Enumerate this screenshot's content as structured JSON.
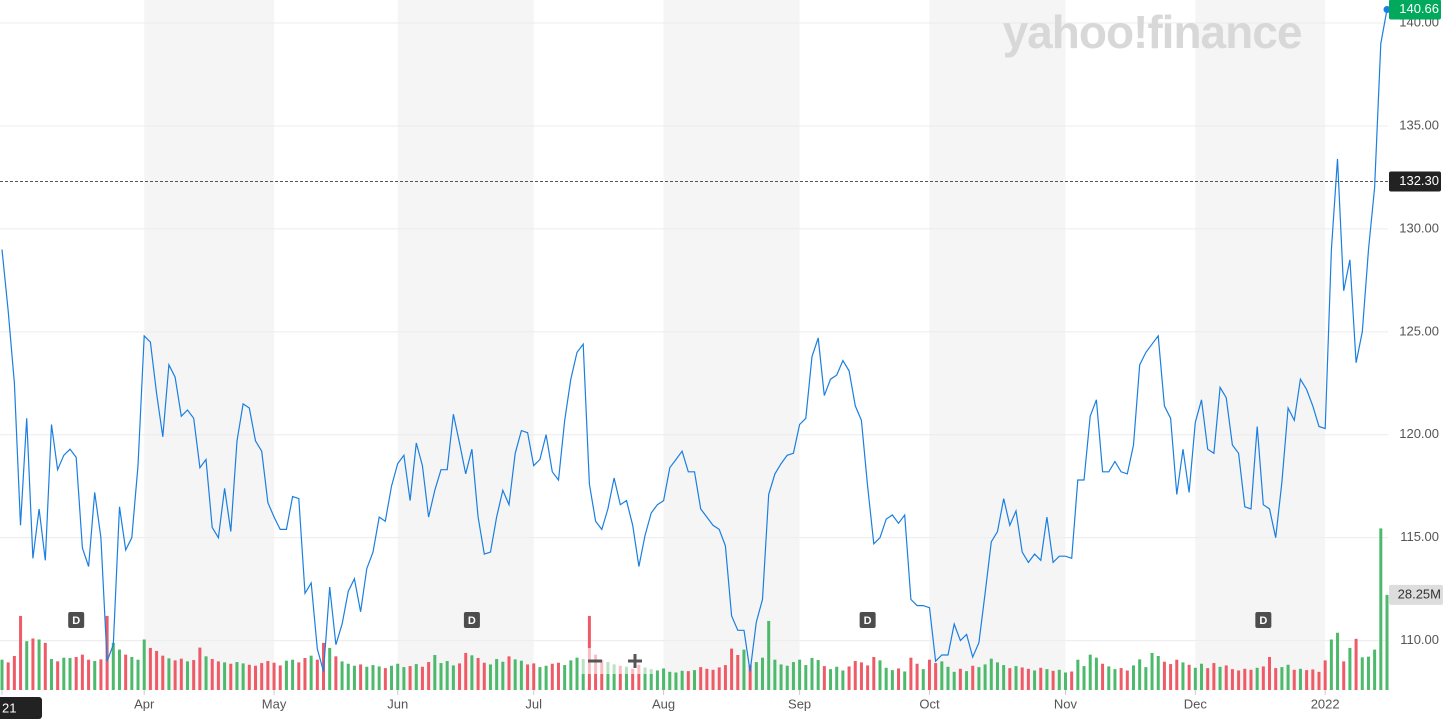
{
  "chart_data": {
    "type": "line",
    "watermark": "yahoo!finance",
    "categories": [
      "21",
      null,
      null,
      null,
      null,
      null,
      null,
      null,
      null,
      null,
      null,
      null,
      null,
      null,
      null,
      null,
      null,
      null,
      null,
      null,
      null,
      null,
      null,
      "Apr",
      null,
      null,
      null,
      null,
      null,
      null,
      null,
      null,
      null,
      null,
      null,
      null,
      null,
      null,
      null,
      null,
      null,
      null,
      null,
      null,
      "May",
      null,
      null,
      null,
      null,
      null,
      null,
      null,
      null,
      null,
      null,
      null,
      null,
      null,
      null,
      null,
      null,
      null,
      null,
      null,
      "Jun",
      null,
      null,
      null,
      null,
      null,
      null,
      null,
      null,
      null,
      null,
      null,
      null,
      null,
      null,
      null,
      null,
      null,
      null,
      null,
      null,
      null,
      "Jul",
      null,
      null,
      null,
      null,
      null,
      null,
      null,
      null,
      null,
      null,
      null,
      null,
      null,
      null,
      null,
      null,
      null,
      null,
      null,
      null,
      "Aug",
      null,
      null,
      null,
      null,
      null,
      null,
      null,
      null,
      null,
      null,
      null,
      null,
      null,
      null,
      null,
      null,
      null,
      null,
      null,
      null,
      null,
      "Sep",
      null,
      null,
      null,
      null,
      null,
      null,
      null,
      null,
      null,
      null,
      null,
      null,
      null,
      null,
      null,
      null,
      null,
      null,
      null,
      null,
      "Oct",
      null,
      null,
      null,
      null,
      null,
      null,
      null,
      null,
      null,
      null,
      null,
      null,
      null,
      null,
      null,
      null,
      null,
      null,
      null,
      null,
      null,
      "Nov",
      null,
      null,
      null,
      null,
      null,
      null,
      null,
      null,
      null,
      null,
      null,
      null,
      null,
      null,
      null,
      null,
      null,
      null,
      null,
      null,
      "Dec",
      null,
      null,
      null,
      null,
      null,
      null,
      null,
      null,
      null,
      null,
      null,
      null,
      null,
      null,
      null,
      null,
      null,
      null,
      null,
      null,
      "2022",
      null,
      null,
      null,
      null,
      null,
      null,
      null,
      null,
      null,
      null
    ],
    "series": [
      {
        "color": "#1a7fe0",
        "last_label": "140.66",
        "last_color": "#00a95c",
        "values": [
          129,
          126,
          122.5,
          115.6,
          120.8,
          114,
          116.4,
          113.9,
          120.5,
          118.3,
          119,
          119.3,
          118.9,
          114.5,
          113.6,
          117.2,
          115,
          109,
          109.8,
          116.5,
          114.4,
          115,
          118.5,
          124.8,
          124.5,
          122,
          119.9,
          123.4,
          122.8,
          120.9,
          121.2,
          120.8,
          118.4,
          118.8,
          115.5,
          115,
          117.4,
          115.3,
          119.7,
          121.5,
          121.3,
          119.7,
          119.2,
          116.7,
          116,
          115.4,
          115.4,
          117,
          116.9,
          112.3,
          112.8,
          109.6,
          108.5,
          112.6,
          109.8,
          110.8,
          112.4,
          113,
          111.4,
          113.5,
          114.3,
          116,
          115.8,
          117.5,
          118.6,
          119,
          116.8,
          119.6,
          118.5,
          116,
          117.3,
          118.3,
          118.3,
          121,
          119.6,
          118.1,
          119.3,
          116,
          114.2,
          114.3,
          116,
          117.3,
          116.6,
          119.1,
          120.2,
          120.1,
          118.5,
          118.8,
          120,
          118.2,
          117.8,
          120.7,
          122.7,
          124,
          124.4,
          117.6,
          115.8,
          115.4,
          116.4,
          117.9,
          116.6,
          116.8,
          115.6,
          113.6,
          115.1,
          116.2,
          116.6,
          116.8,
          118.4,
          118.8,
          119.2,
          118.2,
          118.2,
          116.4,
          116,
          115.6,
          115.4,
          114.6,
          111.2,
          110.5,
          110.5,
          108.5,
          110.9,
          112,
          117.1,
          118.1,
          118.6,
          119,
          119.1,
          120.5,
          120.8,
          123.8,
          124.7,
          121.9,
          122.7,
          122.9,
          123.6,
          123.1,
          121.4,
          120.7,
          117.5,
          114.7,
          115,
          115.9,
          116.1,
          115.7,
          116.1,
          112,
          111.7,
          111.7,
          111.6,
          109,
          109.3,
          109.3,
          110.8,
          110,
          110.3,
          109.2,
          109.9,
          112.3,
          114.8,
          115.3,
          116.9,
          115.6,
          116.3,
          114.3,
          113.8,
          114.2,
          113.9,
          116,
          113.8,
          114.1,
          114.1,
          114,
          117.8,
          117.8,
          120.9,
          121.7,
          118.2,
          118.2,
          118.7,
          118.2,
          118.1,
          119.5,
          123.4,
          124,
          124.4,
          124.8,
          121.4,
          120.8,
          117.1,
          119.3,
          117.2,
          120.6,
          121.7,
          119.3,
          119.1,
          122.3,
          121.8,
          119.5,
          119.1,
          116.5,
          116.4,
          120.4,
          116.6,
          116.4,
          115,
          117.7,
          121.3,
          120.7,
          122.7,
          122.2,
          121.4,
          120.4,
          120.3,
          129,
          133.4,
          127,
          128.5,
          123.5,
          125,
          129,
          132,
          139,
          140.66
        ]
      }
    ],
    "ylim": [
      107.6,
      141.12
    ],
    "yticks": [
      {
        "value": 110,
        "label": "110.00"
      },
      {
        "value": 115,
        "label": "115.00"
      },
      {
        "value": 120,
        "label": "120.00"
      },
      {
        "value": 125,
        "label": "125.00"
      },
      {
        "value": 130,
        "label": "130.00"
      },
      {
        "value": 135,
        "label": "135.00"
      },
      {
        "value": 140,
        "label": "140.00"
      }
    ],
    "grid": true,
    "band_color": "#f5f5f5",
    "previous_close": 132.3,
    "previous_close_label": "132.30",
    "volume": {
      "up_color": "#4cb96b",
      "down_color": "#ef5a67",
      "vlim": [
        0,
        60
      ],
      "last_label": "28.25M",
      "values": [
        9.0,
        8.2,
        10.1,
        22.0,
        14.5,
        15.3,
        15.0,
        14.0,
        9.2,
        8.5,
        9.6,
        9.5,
        9.8,
        10.5,
        9.0,
        8.6,
        9.1,
        22.0,
        14.0,
        12.0,
        10.5,
        9.8,
        9.0,
        15.0,
        12.5,
        11.6,
        10.2,
        9.4,
        8.8,
        9.3,
        8.5,
        8.9,
        12.6,
        10.0,
        9.2,
        8.5,
        8.2,
        7.8,
        8.3,
        7.9,
        7.5,
        7.2,
        8.0,
        8.6,
        8.1,
        7.3,
        8.7,
        9.0,
        8.2,
        9.5,
        10.2,
        9.0,
        14.0,
        12.5,
        10.0,
        8.5,
        7.8,
        7.2,
        7.6,
        6.9,
        7.4,
        7.0,
        6.5,
        7.2,
        7.8,
        6.8,
        7.1,
        7.7,
        6.9,
        8.3,
        10.4,
        8.0,
        8.6,
        7.3,
        7.9,
        11.0,
        10.3,
        9.5,
        8.1,
        7.6,
        9.2,
        8.4,
        10.0,
        9.1,
        8.7,
        7.6,
        7.9,
        6.8,
        7.2,
        7.8,
        8.1,
        7.4,
        8.8,
        9.6,
        9.2,
        22.0,
        10.5,
        8.9,
        8.3,
        7.6,
        7.2,
        6.9,
        6.3,
        7.5,
        6.7,
        6.2,
        5.8,
        6.4,
        5.4,
        5.2,
        5.7,
        5.6,
        5.9,
        6.8,
        6.3,
        6.0,
        6.7,
        7.4,
        12.3,
        10.4,
        12.0,
        7.5,
        8.3,
        9.6,
        20.5,
        9.0,
        7.6,
        7.2,
        8.3,
        9.0,
        7.4,
        9.5,
        8.9,
        7.1,
        6.2,
        6.9,
        5.8,
        7.0,
        8.6,
        8.2,
        7.3,
        9.8,
        8.8,
        6.6,
        5.9,
        6.4,
        5.5,
        9.6,
        7.8,
        6.2,
        9.0,
        8.0,
        8.5,
        6.9,
        5.4,
        6.3,
        5.6,
        7.2,
        6.8,
        7.6,
        9.3,
        8.2,
        7.4,
        6.5,
        7.1,
        6.7,
        6.3,
        5.8,
        6.6,
        6.2,
        5.7,
        6.0,
        5.2,
        5.5,
        9.0,
        7.1,
        10.5,
        9.6,
        7.8,
        7.0,
        6.2,
        6.5,
        5.8,
        7.3,
        9.1,
        6.8,
        11.0,
        10.1,
        8.4,
        7.7,
        9.0,
        8.2,
        7.5,
        6.6,
        7.8,
        6.5,
        8.0,
        6.9,
        7.3,
        6.2,
        5.8,
        6.3,
        6.0,
        6.6,
        7.0,
        9.8,
        6.5,
        6.8,
        7.5,
        6.0,
        6.3,
        5.9,
        6.1,
        5.4,
        8.8,
        15.0,
        17.0,
        8.5,
        12.5,
        15.2,
        9.7,
        9.9,
        12.0,
        48.0,
        28.25
      ]
    },
    "events": [
      {
        "index": 12,
        "label": "D"
      },
      {
        "index": 76,
        "label": "D"
      },
      {
        "index": 140,
        "label": "D"
      },
      {
        "index": 204,
        "label": "D"
      }
    ]
  }
}
